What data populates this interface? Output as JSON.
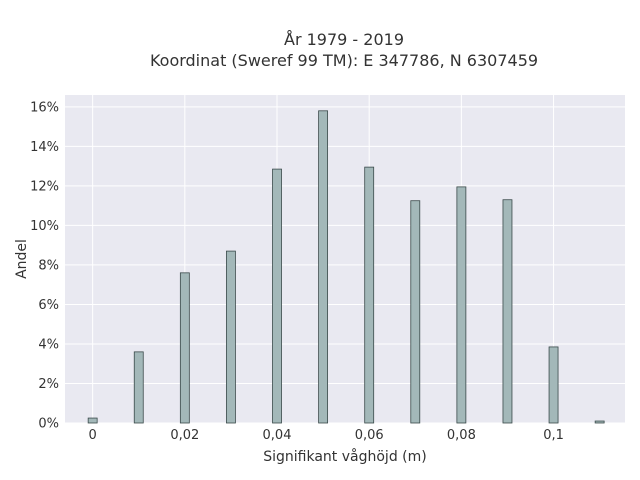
{
  "chart_data": {
    "type": "bar",
    "title_line1": "År 1979 - 2019",
    "title_line2": "Koordinat (Sweref 99 TM): E 347786, N 6307459",
    "xlabel": "Signifikant våghöjd (m)",
    "ylabel": "Andel",
    "x": [
      0,
      0.01,
      0.02,
      0.03,
      0.04,
      0.05,
      0.06,
      0.07,
      0.08,
      0.09,
      0.1,
      0.11
    ],
    "values": [
      0.25,
      3.6,
      7.6,
      8.7,
      12.85,
      15.8,
      12.95,
      11.25,
      11.95,
      11.3,
      3.85,
      0.1
    ],
    "xlim": [
      -0.006,
      0.1155
    ],
    "ylim": [
      0,
      16.6
    ],
    "x_ticks": [
      0,
      0.02,
      0.04,
      0.06,
      0.08,
      0.1
    ],
    "x_tick_labels": [
      "0",
      "0,02",
      "0,04",
      "0,06",
      "0,08",
      "0,1"
    ],
    "y_ticks": [
      0,
      2,
      4,
      6,
      8,
      10,
      12,
      14,
      16
    ],
    "y_tick_labels": [
      "0%",
      "2%",
      "4%",
      "6%",
      "8%",
      "10%",
      "12%",
      "14%",
      "16%"
    ],
    "grid": true,
    "colors": {
      "bar_fill": "#a3b8b9",
      "bar_stroke": "#3a4a4a",
      "plot_bg": "#e9e9f1",
      "grid": "#ffffff"
    }
  }
}
